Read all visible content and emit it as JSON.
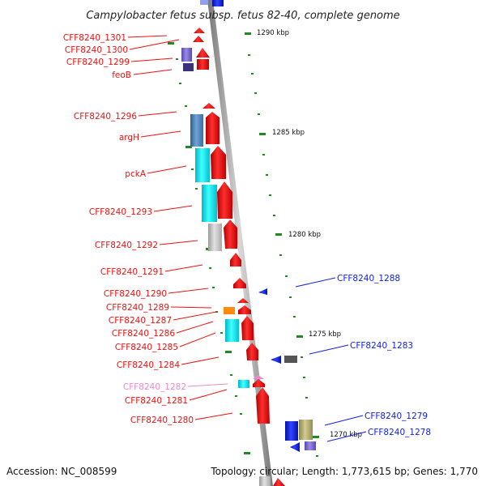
{
  "title": "Campylobacter fetus subsp. fetus 82-40, complete genome",
  "footer": {
    "accession": "Accession: NC_008599",
    "summary": "Topology: circular; Length: 1,773,615 bp; Genes: 1,770"
  },
  "scale_labels": [
    "1290 kbp",
    "1285 kbp",
    "1280 kbp",
    "1275 kbp",
    "1270 kbp"
  ],
  "colors": {
    "forward_strand": "#ee1111",
    "reverse_strand": "#1122dd",
    "pseudo_label": "#ee88cc",
    "backbone": "#999999",
    "tick": "#228822"
  },
  "left_labels": [
    "CFF8240_1301",
    "CFF8240_1300",
    "CFF8240_1299",
    "feoB",
    "CFF8240_1296",
    "argH",
    "pckA",
    "CFF8240_1293",
    "CFF8240_1292",
    "CFF8240_1291",
    "CFF8240_1290",
    "CFF8240_1289",
    "CFF8240_1287",
    "CFF8240_1286",
    "CFF8240_1285",
    "CFF8240_1284",
    "CFF8240_1282",
    "CFF8240_1281",
    "CFF8240_1280"
  ],
  "right_labels": [
    "CFF8240_1288",
    "CFF8240_1283",
    "CFF8240_1279",
    "CFF8240_1278"
  ]
}
